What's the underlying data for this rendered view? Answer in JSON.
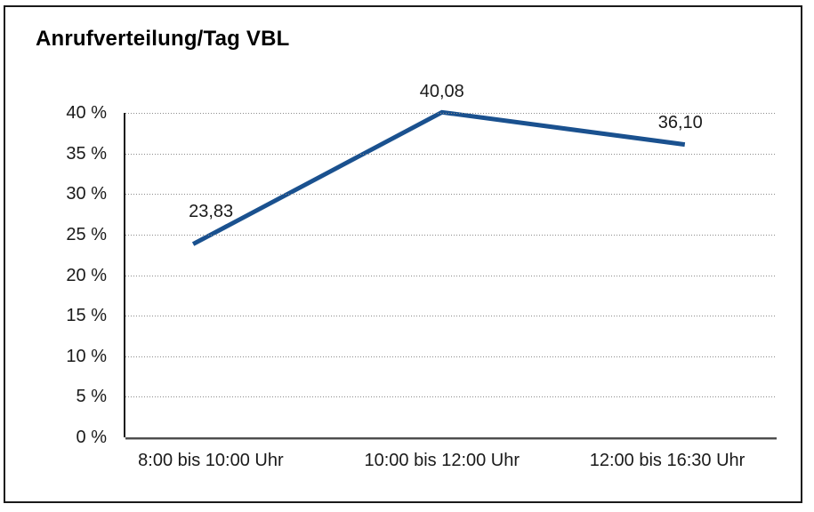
{
  "chart_data": {
    "type": "line",
    "title": "Anrufverteilung/Tag VBL",
    "categories": [
      "8:00 bis 10:00 Uhr",
      "10:00 bis 12:00 Uhr",
      "12:00 bis 16:30 Uhr"
    ],
    "values": [
      23.83,
      40.08,
      36.1
    ],
    "data_labels": [
      "23,83",
      "40,08",
      "36,10"
    ],
    "y_ticks": [
      "0 %",
      "5 %",
      "10 %",
      "15 %",
      "20 %",
      "25 %",
      "30 %",
      "35 %",
      "40 %"
    ],
    "ylim": [
      0,
      40
    ],
    "xlabel": "",
    "ylabel": "",
    "grid": "horizontal-dotted",
    "legend": "none",
    "line_color": "#1a518f",
    "axis_color": "#1a1a1a",
    "gridline_color": "#8a8a8a"
  }
}
